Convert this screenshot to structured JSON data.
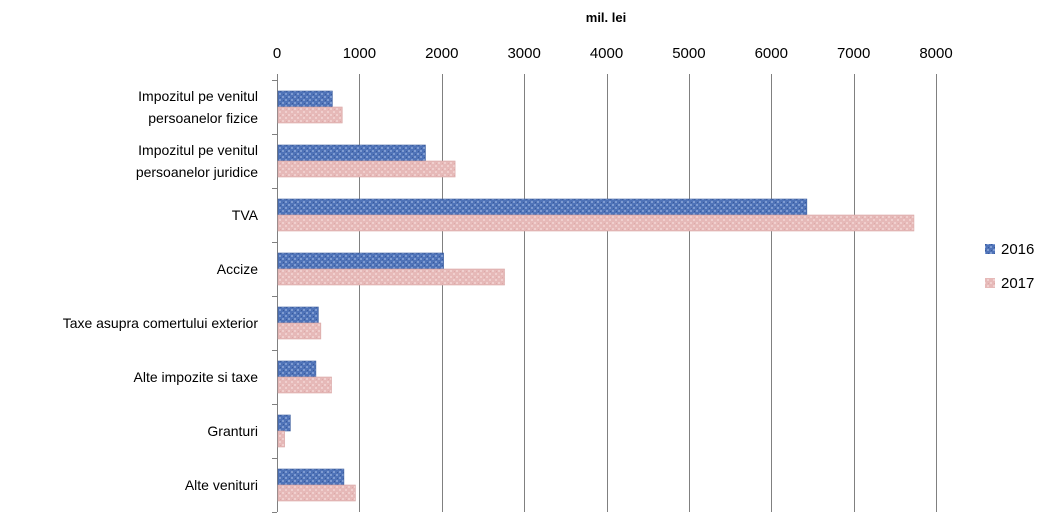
{
  "chart_data": {
    "type": "bar",
    "orientation": "horizontal",
    "title": "",
    "xlabel": "mil. lei",
    "ylabel": "",
    "xlim": [
      0,
      8000
    ],
    "x_ticks": [
      0,
      1000,
      2000,
      3000,
      4000,
      5000,
      6000,
      7000,
      8000
    ],
    "x_axis_position": "top",
    "grid": true,
    "legend_position": "right",
    "categories": [
      [
        "Impozitul pe venitul",
        "persoanelor fizice"
      ],
      [
        "Impozitul pe venitul",
        "persoanelor juridice"
      ],
      [
        "TVA"
      ],
      [
        "Accize"
      ],
      [
        "Taxe asupra comertului exterior"
      ],
      [
        "Alte impozite si taxe"
      ],
      [
        "Granturi"
      ],
      [
        "Alte venituri"
      ]
    ],
    "series": [
      {
        "name": "2016",
        "color": "#4F73B8",
        "values": [
          660,
          1790,
          6420,
          2010,
          490,
          460,
          150,
          800
        ]
      },
      {
        "name": "2017",
        "color": "#E6B9B8",
        "values": [
          780,
          2150,
          7720,
          2750,
          520,
          650,
          80,
          940
        ]
      }
    ]
  }
}
